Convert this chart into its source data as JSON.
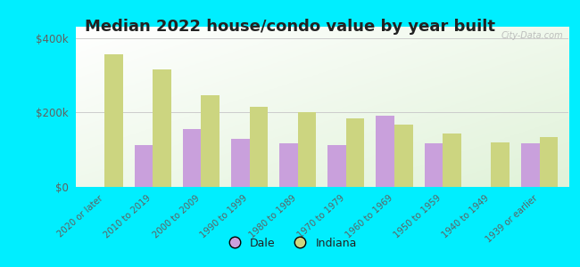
{
  "title": "Median 2022 house/condo value by year built",
  "categories": [
    "2020 or later",
    "2010 to 2019",
    "2000 to 2009",
    "1990 to 1999",
    "1980 to 1989",
    "1970 to 1979",
    "1960 to 1969",
    "1950 to 1959",
    "1940 to 1949",
    "1939 or earlier"
  ],
  "dale_values": [
    0,
    112000,
    155000,
    128000,
    118000,
    112000,
    192000,
    118000,
    0,
    118000
  ],
  "indiana_values": [
    355000,
    315000,
    245000,
    215000,
    200000,
    183000,
    168000,
    143000,
    120000,
    133000
  ],
  "dale_color": "#c9a0dc",
  "indiana_color": "#ccd580",
  "bg_outer": "#00eeff",
  "bg_plot_color": "#e8f5e0",
  "ytick_labels": [
    "$0",
    "$200k",
    "$400k"
  ],
  "ytick_values": [
    0,
    200000,
    400000
  ],
  "ylim": [
    0,
    430000
  ],
  "legend_labels": [
    "Dale",
    "Indiana"
  ],
  "watermark": "City-Data.com",
  "title_fontsize": 13,
  "label_fontsize": 7.2,
  "bar_width": 0.38,
  "figsize": [
    6.5,
    3.0
  ],
  "dpi": 100
}
